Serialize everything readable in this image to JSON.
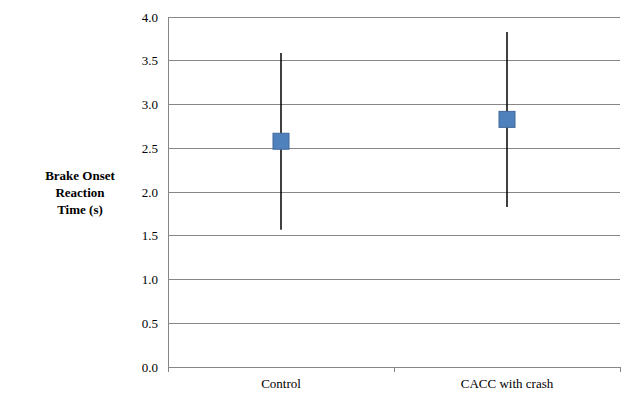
{
  "chart_data": {
    "type": "point",
    "y_label": "Brake Onset Reaction Time (s)",
    "categories": [
      "Control",
      "CACC with crash"
    ],
    "values": [
      2.58,
      2.83
    ],
    "errors": [
      1.01,
      1.0
    ],
    "color": "#4f81bd",
    "marker": "square",
    "ylim": [
      0,
      4
    ],
    "yticks": [
      {
        "value": 0,
        "label": "0.0"
      },
      0.5,
      {
        "value": 1,
        "label": "1.0"
      },
      1.5,
      {
        "value": 2,
        "label": "2.0"
      },
      2.5,
      {
        "value": 3,
        "label": "3.0"
      },
      3.5,
      {
        "value": 4,
        "label": "4.0"
      }
    ],
    "grid": true
  }
}
